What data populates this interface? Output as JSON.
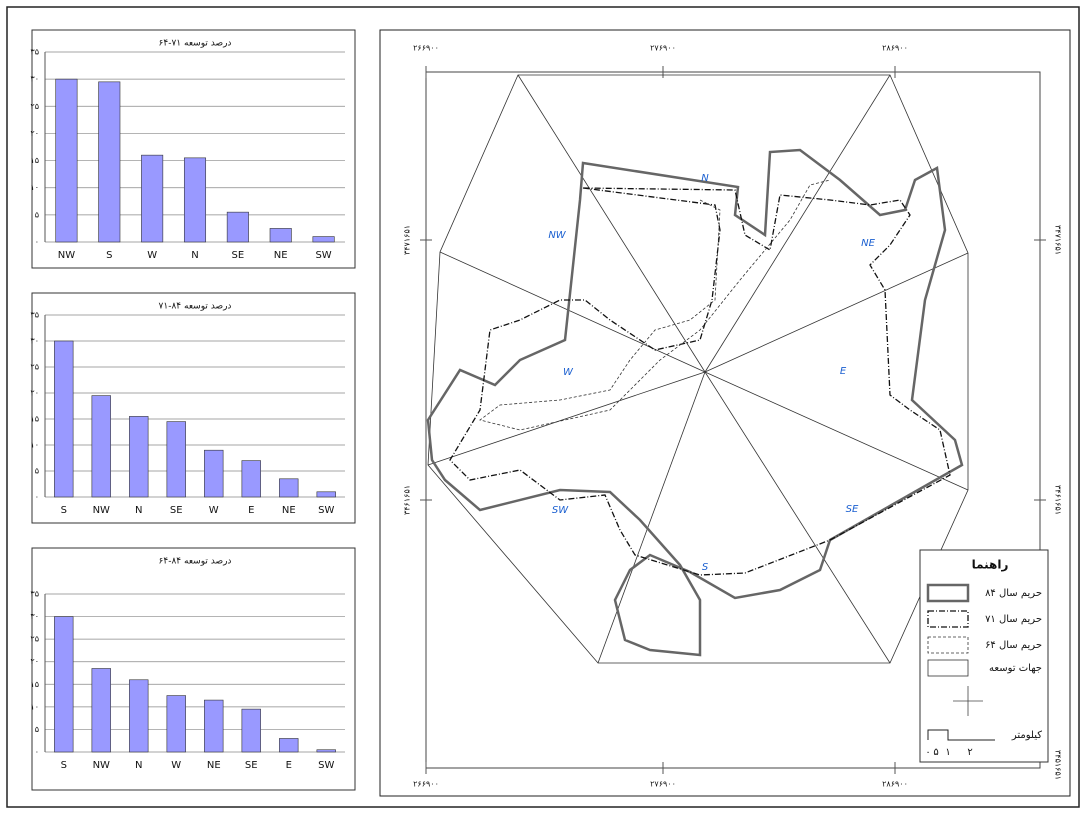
{
  "chart_data": [
    {
      "type": "bar",
      "title": "درصد توسعه ۷۱-۶۴",
      "categories": [
        "NW",
        "S",
        "W",
        "N",
        "SE",
        "NE",
        "SW"
      ],
      "values": [
        30,
        29.5,
        16,
        15.5,
        5.5,
        2.5,
        1
      ],
      "color": "#9999ff",
      "ylim": [
        0,
        35
      ],
      "yticks": [
        {
          "value": 0,
          "label": "۰"
        },
        {
          "value": 5,
          "label": "۵"
        },
        {
          "value": 10,
          "label": "۱۰"
        },
        {
          "value": 15,
          "label": "۱۵"
        },
        {
          "value": 20,
          "label": "۲۰"
        },
        {
          "value": 25,
          "label": "۲۵"
        },
        {
          "value": 30,
          "label": "۳۰"
        },
        {
          "value": 35,
          "label": "۳۵"
        }
      ],
      "grid": true
    },
    {
      "type": "bar",
      "title": "درصد توسعه ۸۴-۷۱",
      "categories": [
        "S",
        "NW",
        "N",
        "SE",
        "W",
        "E",
        "NE",
        "SW"
      ],
      "values": [
        30,
        19.5,
        15.5,
        14.5,
        9,
        7,
        3.5,
        1
      ],
      "color": "#9999ff",
      "ylim": [
        0,
        35
      ],
      "yticks": [
        {
          "value": 0,
          "label": "۰"
        },
        {
          "value": 5,
          "label": "۵"
        },
        {
          "value": 10,
          "label": "۱۰"
        },
        {
          "value": 15,
          "label": "۱۵"
        },
        {
          "value": 20,
          "label": "۲۰"
        },
        {
          "value": 25,
          "label": "۲۵"
        },
        {
          "value": 30,
          "label": "۳۰"
        },
        {
          "value": 35,
          "label": "۳۵"
        }
      ],
      "grid": true
    },
    {
      "type": "bar",
      "title": "درصد توسعه ۸۴-۶۴",
      "categories": [
        "S",
        "NW",
        "N",
        "W",
        "NE",
        "SE",
        "E",
        "SW"
      ],
      "values": [
        30,
        18.5,
        16,
        12.5,
        11.5,
        9.5,
        3,
        0.5
      ],
      "color": "#9999ff",
      "ylim": [
        0,
        35
      ],
      "yticks": [
        {
          "value": 0,
          "label": "۰"
        },
        {
          "value": 5,
          "label": "۵"
        },
        {
          "value": 10,
          "label": "۱۰"
        },
        {
          "value": 15,
          "label": "۱۵"
        },
        {
          "value": 20,
          "label": "۲۰"
        },
        {
          "value": 25,
          "label": "۲۵"
        },
        {
          "value": 30,
          "label": "۳۰"
        },
        {
          "value": 35,
          "label": "۳۵"
        }
      ],
      "grid": true
    }
  ],
  "map": {
    "coordinates_top": [
      "۲۶۶۹۰۰",
      "۲۷۶۹۰۰",
      "۲۸۶۹۰۰"
    ],
    "coordinates_bottom": [
      "۲۶۶۹۰۰",
      "۲۷۶۹۰۰",
      "۲۸۶۹۰۰"
    ],
    "coordinates_left": [
      "۳۴۷۱۶۵۱",
      "۳۴۶۱۶۵۱"
    ],
    "coordinates_right": [
      "۳۴۷۱۶۵۱",
      "۳۴۶۱۶۵۱",
      "۳۴۵۱۶۵۱"
    ],
    "directions": [
      "N",
      "NE",
      "E",
      "SE",
      "S",
      "SW",
      "W",
      "NW"
    ],
    "legend": {
      "title": "راهنما",
      "items": [
        "حریم سال ۸۴",
        "حریم سال ۷۱",
        "حریم سال ۶۴",
        "جهات توسعه"
      ],
      "scale_unit": "کیلومتر",
      "scale_labels": [
        "۰",
        "۵",
        "۱",
        "۲"
      ]
    }
  }
}
